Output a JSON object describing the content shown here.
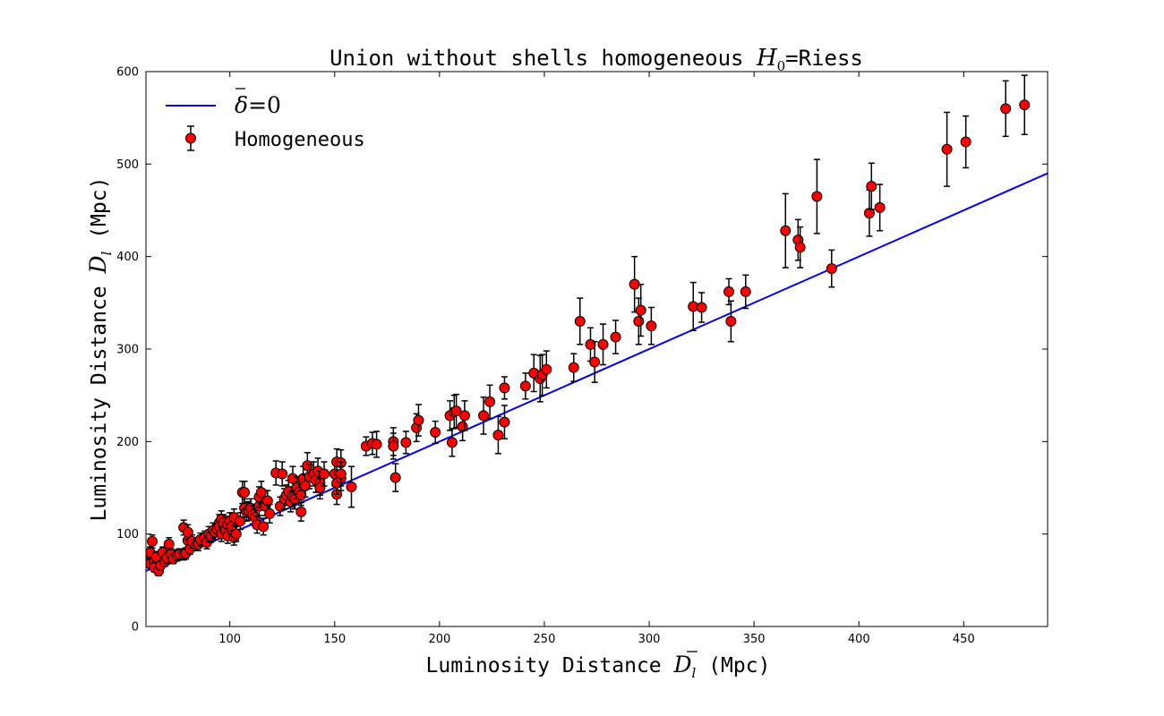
{
  "chart_data": {
    "type": "scatter",
    "title": {
      "prefix": "Union without shells homogeneous ",
      "symbol": "H",
      "subscript": "0",
      "suffix": "=Riess"
    },
    "xlabel": {
      "prefix": "Luminosity Distance ",
      "symbol": "D",
      "subscript": "l",
      "suffix": " (Mpc)"
    },
    "ylabel": {
      "prefix": "Luminosity Distance ",
      "symbol": "D",
      "subscript": "l",
      "suffix": " (Mpc)"
    },
    "xlim": [
      60,
      490
    ],
    "ylim": [
      0,
      600
    ],
    "xticks": [
      100,
      150,
      200,
      250,
      300,
      350,
      400,
      450
    ],
    "yticks": [
      0,
      100,
      200,
      300,
      400,
      500,
      600
    ],
    "grid": false,
    "legend_position": "top-left",
    "series": [
      {
        "name_symbol": "δ",
        "name_suffix": "=0",
        "kind": "line",
        "color": "#0000ff",
        "x": [
          60,
          490
        ],
        "y": [
          60,
          490
        ]
      },
      {
        "name": "Homogeneous",
        "kind": "errorbar-scatter",
        "color": "#ff0000",
        "edge_color": "#000000",
        "points": [
          [
            61,
            72,
            5
          ],
          [
            62,
            68,
            5
          ],
          [
            62,
            80,
            6
          ],
          [
            63,
            92,
            7
          ],
          [
            64,
            70,
            5
          ],
          [
            64,
            64,
            5
          ],
          [
            65,
            75,
            6
          ],
          [
            66,
            60,
            5
          ],
          [
            67,
            66,
            5
          ],
          [
            68,
            80,
            6
          ],
          [
            69,
            70,
            5
          ],
          [
            70,
            74,
            6
          ],
          [
            71,
            89,
            7
          ],
          [
            72,
            78,
            6
          ],
          [
            73,
            73,
            5
          ],
          [
            75,
            77,
            6
          ],
          [
            76,
            78,
            6
          ],
          [
            78,
            78,
            6
          ],
          [
            78,
            107,
            8
          ],
          [
            79,
            79,
            6
          ],
          [
            80,
            93,
            7
          ],
          [
            80,
            102,
            8
          ],
          [
            81,
            84,
            6
          ],
          [
            82,
            92,
            7
          ],
          [
            84,
            88,
            6
          ],
          [
            85,
            89,
            7
          ],
          [
            86,
            94,
            7
          ],
          [
            88,
            96,
            7
          ],
          [
            89,
            91,
            7
          ],
          [
            90,
            100,
            8
          ],
          [
            91,
            98,
            7
          ],
          [
            92,
            104,
            8
          ],
          [
            93,
            102,
            8
          ],
          [
            94,
            105,
            8
          ],
          [
            95,
            112,
            9
          ],
          [
            95,
            108,
            8
          ],
          [
            96,
            116,
            9
          ],
          [
            96,
            100,
            8
          ],
          [
            97,
            112,
            9
          ],
          [
            98,
            104,
            8
          ],
          [
            99,
            110,
            9
          ],
          [
            99,
            98,
            8
          ],
          [
            100,
            114,
            9
          ],
          [
            101,
            104,
            8
          ],
          [
            101,
            108,
            8
          ],
          [
            102,
            118,
            9
          ],
          [
            102,
            96,
            8
          ],
          [
            103,
            100,
            8
          ],
          [
            105,
            114,
            9
          ],
          [
            106,
            145,
            12
          ],
          [
            107,
            145,
            12
          ],
          [
            107,
            128,
            10
          ],
          [
            108,
            124,
            10
          ],
          [
            109,
            125,
            10
          ],
          [
            110,
            128,
            10
          ],
          [
            111,
            121,
            10
          ],
          [
            112,
            118,
            9
          ],
          [
            113,
            110,
            9
          ],
          [
            114,
            130,
            10
          ],
          [
            114,
            140,
            11
          ],
          [
            115,
            145,
            12
          ],
          [
            116,
            108,
            9
          ],
          [
            117,
            130,
            10
          ],
          [
            118,
            136,
            11
          ],
          [
            119,
            122,
            10
          ],
          [
            122,
            166,
            13
          ],
          [
            124,
            130,
            10
          ],
          [
            125,
            165,
            13
          ],
          [
            126,
            138,
            11
          ],
          [
            127,
            142,
            11
          ],
          [
            128,
            146,
            12
          ],
          [
            129,
            135,
            11
          ],
          [
            130,
            160,
            13
          ],
          [
            130,
            140,
            11
          ],
          [
            131,
            138,
            11
          ],
          [
            132,
            150,
            12
          ],
          [
            133,
            145,
            12
          ],
          [
            134,
            124,
            10
          ],
          [
            134,
            142,
            11
          ],
          [
            135,
            160,
            13
          ],
          [
            136,
            152,
            12
          ],
          [
            137,
            174,
            14
          ],
          [
            138,
            162,
            13
          ],
          [
            140,
            165,
            13
          ],
          [
            141,
            158,
            13
          ],
          [
            142,
            168,
            14
          ],
          [
            143,
            155,
            13
          ],
          [
            143,
            150,
            12
          ],
          [
            145,
            165,
            13
          ],
          [
            150,
            165,
            13
          ],
          [
            151,
            143,
            11
          ],
          [
            151,
            178,
            14
          ],
          [
            151,
            155,
            12
          ],
          [
            153,
            177,
            14
          ],
          [
            153,
            160,
            13
          ],
          [
            153,
            165,
            13
          ],
          [
            158,
            151,
            22
          ],
          [
            165,
            195,
            10
          ],
          [
            168,
            198,
            12
          ],
          [
            170,
            197,
            14
          ],
          [
            178,
            200,
            15
          ],
          [
            178,
            195,
            14
          ],
          [
            179,
            161,
            15
          ],
          [
            184,
            199,
            12
          ],
          [
            189,
            215,
            15
          ],
          [
            190,
            223,
            17
          ],
          [
            198,
            210,
            12
          ],
          [
            205,
            228,
            16
          ],
          [
            206,
            199,
            15
          ],
          [
            207,
            232,
            18
          ],
          [
            208,
            233,
            18
          ],
          [
            211,
            216,
            15
          ],
          [
            212,
            228,
            16
          ],
          [
            221,
            228,
            20
          ],
          [
            224,
            243,
            18
          ],
          [
            228,
            207,
            20
          ],
          [
            231,
            258,
            12
          ],
          [
            231,
            221,
            18
          ],
          [
            241,
            260,
            14
          ],
          [
            245,
            274,
            20
          ],
          [
            248,
            268,
            25
          ],
          [
            249,
            272,
            22
          ],
          [
            251,
            278,
            20
          ],
          [
            264,
            280,
            15
          ],
          [
            267,
            330,
            25
          ],
          [
            272,
            305,
            18
          ],
          [
            274,
            286,
            22
          ],
          [
            278,
            305,
            22
          ],
          [
            284,
            313,
            18
          ],
          [
            293,
            370,
            30
          ],
          [
            295,
            330,
            25
          ],
          [
            296,
            342,
            28
          ],
          [
            301,
            325,
            20
          ],
          [
            321,
            346,
            26
          ],
          [
            325,
            345,
            16
          ],
          [
            338,
            362,
            14
          ],
          [
            339,
            330,
            22
          ],
          [
            346,
            362,
            18
          ],
          [
            365,
            428,
            40
          ],
          [
            371,
            418,
            22
          ],
          [
            372,
            410,
            22
          ],
          [
            380,
            465,
            40
          ],
          [
            387,
            387,
            20
          ],
          [
            405,
            447,
            25
          ],
          [
            406,
            476,
            25
          ],
          [
            410,
            453,
            25
          ],
          [
            442,
            516,
            40
          ],
          [
            451,
            524,
            28
          ],
          [
            470,
            560,
            30
          ],
          [
            479,
            564,
            32
          ]
        ]
      }
    ]
  }
}
